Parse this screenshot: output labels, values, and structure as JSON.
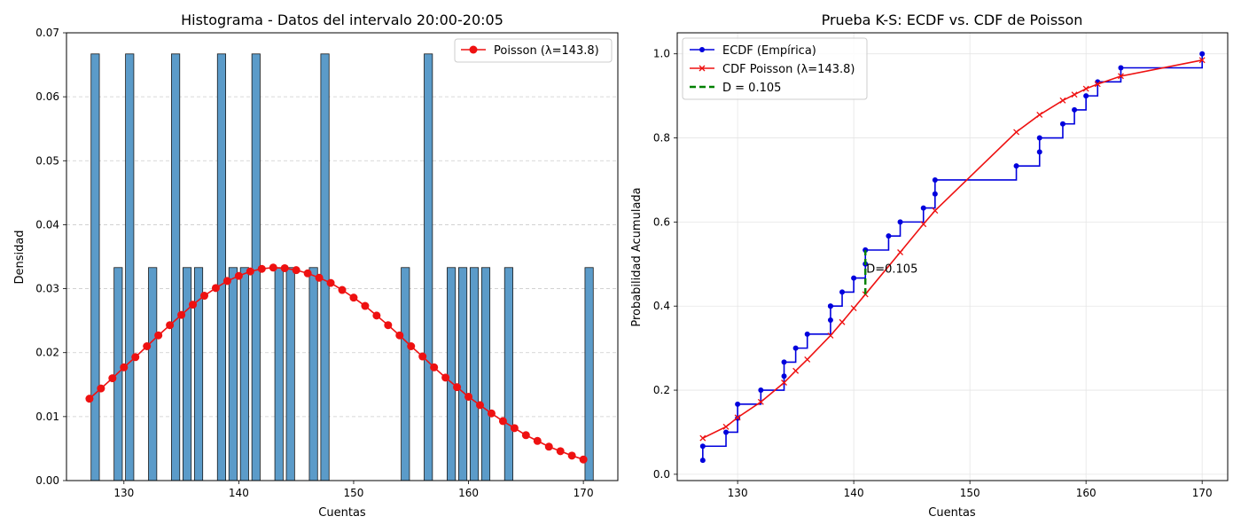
{
  "chart_data": [
    {
      "type": "bar",
      "title": "Histograma - Datos del intervalo 20:00-20:05",
      "xlabel": "Cuentas",
      "ylabel": "Densidad",
      "xlim": [
        125,
        173
      ],
      "ylim": [
        0,
        0.07
      ],
      "xticks": [
        "130",
        "140",
        "150",
        "160",
        "170"
      ],
      "yticks": [
        "0.00",
        "0.01",
        "0.02",
        "0.03",
        "0.04",
        "0.05",
        "0.06",
        "0.07"
      ],
      "grid": "y",
      "legend_position": "top-right",
      "colors": {
        "bars": "#5b9bc9",
        "bar_edge": "#1a1a1a",
        "poisson": "#ee1111",
        "grid": "#cccccc"
      },
      "bars": {
        "centers": [
          127.5,
          129.5,
          130.5,
          132.5,
          134.5,
          135.5,
          136.5,
          138.5,
          139.5,
          140.5,
          141.5,
          143.5,
          144.5,
          146.5,
          147.5,
          154.5,
          156.5,
          158.5,
          159.5,
          160.5,
          161.5,
          163.5,
          170.5
        ],
        "values": [
          0.0667,
          0.0333,
          0.0667,
          0.0333,
          0.0667,
          0.0333,
          0.0333,
          0.0667,
          0.0333,
          0.0333,
          0.0667,
          0.0333,
          0.0333,
          0.0333,
          0.0667,
          0.0333,
          0.0667,
          0.0333,
          0.0333,
          0.0333,
          0.0333,
          0.0333,
          0.0333
        ]
      },
      "series": [
        {
          "name": "Poisson (λ=143.8)",
          "x": [
            127,
            128,
            129,
            130,
            131,
            132,
            133,
            134,
            135,
            136,
            137,
            138,
            139,
            140,
            141,
            142,
            143,
            144,
            145,
            146,
            147,
            148,
            149,
            150,
            151,
            152,
            153,
            154,
            155,
            156,
            157,
            158,
            159,
            160,
            161,
            162,
            163,
            164,
            165,
            166,
            167,
            168,
            169,
            170
          ],
          "y": [
            0.0128,
            0.0144,
            0.016,
            0.0177,
            0.0193,
            0.021,
            0.0227,
            0.0243,
            0.0259,
            0.0275,
            0.0289,
            0.0301,
            0.0312,
            0.032,
            0.0327,
            0.0331,
            0.0333,
            0.0332,
            0.0329,
            0.0324,
            0.0317,
            0.0309,
            0.0298,
            0.0286,
            0.0273,
            0.0258,
            0.0243,
            0.0227,
            0.021,
            0.0194,
            0.0177,
            0.0161,
            0.0146,
            0.0131,
            0.0118,
            0.0105,
            0.0093,
            0.0082,
            0.0071,
            0.0062,
            0.0053,
            0.0046,
            0.0039,
            0.0033
          ]
        }
      ]
    },
    {
      "type": "line",
      "title": "Prueba K-S: ECDF vs. CDF de Poisson",
      "xlabel": "Cuentas",
      "ylabel": "Probabilidad Acumulada",
      "xlim": [
        124.8,
        172.2
      ],
      "ylim": [
        -0.015,
        1.05
      ],
      "xticks": [
        "130",
        "140",
        "150",
        "160",
        "170"
      ],
      "yticks": [
        "0.0",
        "0.2",
        "0.4",
        "0.6",
        "0.8",
        "1.0"
      ],
      "grid": "both",
      "legend_position": "top-left",
      "colors": {
        "ecdf": "#0000dd",
        "cdf": "#ee1111",
        "d": "#008000",
        "grid": "#e5e5e5"
      },
      "series": [
        {
          "name": "ECDF (Empírica)",
          "x": [
            127,
            127,
            129,
            130,
            130,
            132,
            134,
            134,
            135,
            136,
            138,
            138,
            138,
            139,
            140,
            141,
            141,
            141,
            143,
            144,
            146,
            147,
            147,
            154,
            156,
            156,
            158,
            159,
            160,
            161,
            163,
            170
          ],
          "y": [
            0.0333,
            0.0667,
            0.1,
            0.1333,
            0.1667,
            0.2,
            0.2333,
            0.2667,
            0.3,
            0.3333,
            0.3667,
            0.4,
            0.4,
            0.4333,
            0.4667,
            0.5,
            0.5333,
            0.5333,
            0.5667,
            0.6,
            0.6333,
            0.6667,
            0.7,
            0.7333,
            0.7667,
            0.8,
            0.8333,
            0.8667,
            0.9,
            0.9333,
            0.9667,
            1.0
          ]
        },
        {
          "name": "CDF Poisson (λ=143.8)",
          "x": [
            127,
            129,
            130,
            132,
            134,
            135,
            136,
            138,
            139,
            140,
            141,
            144,
            146,
            147,
            154,
            156,
            158,
            159,
            160,
            161,
            163,
            170
          ],
          "y": [
            0.086,
            0.113,
            0.135,
            0.172,
            0.218,
            0.246,
            0.273,
            0.33,
            0.362,
            0.395,
            0.428,
            0.528,
            0.595,
            0.627,
            0.814,
            0.855,
            0.889,
            0.903,
            0.917,
            0.928,
            0.947,
            0.985
          ]
        },
        {
          "name": "D = 0.105",
          "x": [
            141,
            141
          ],
          "y": [
            0.428,
            0.533
          ]
        }
      ],
      "annotation": {
        "text": "D=0.105",
        "x": 141,
        "y": 0.48
      }
    }
  ]
}
